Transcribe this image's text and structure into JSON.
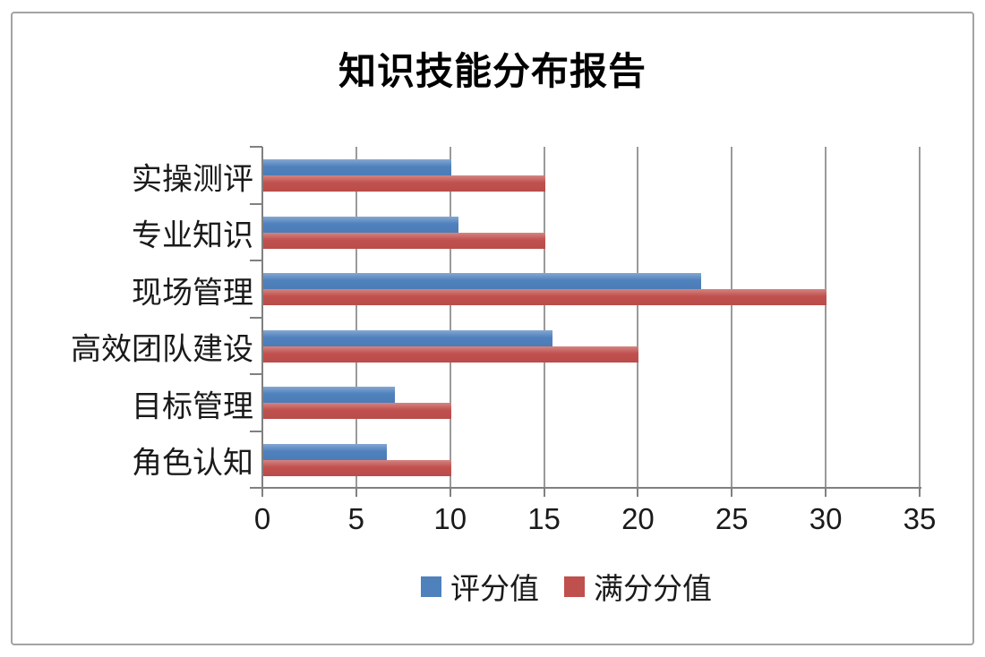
{
  "page": {
    "background_color": "#ffffff",
    "border_color": "#a3a3a3"
  },
  "chart_data": {
    "type": "bar",
    "orientation": "horizontal",
    "title": "知识技能分布报告",
    "categories": [
      "实操测评",
      "专业知识",
      "现场管理",
      "高效团队建设",
      "目标管理",
      "角色认知"
    ],
    "categories_order": "top-to-bottom",
    "series": [
      {
        "name": "评分值",
        "color": "#4F81BD",
        "values": [
          10,
          10.4,
          23.3,
          15.4,
          7,
          6.6
        ]
      },
      {
        "name": "满分分值",
        "color": "#C0504D",
        "values": [
          15,
          15,
          30,
          20,
          10,
          10
        ]
      }
    ],
    "xlim": [
      0,
      35
    ],
    "xticks": [
      0,
      5,
      10,
      15,
      20,
      25,
      30,
      35
    ],
    "grid": true,
    "legend_position": "bottom",
    "axis_color": "#808080",
    "grid_color": "#9a9a9a",
    "title_color": "#000000",
    "label_color": "#1a1a1a"
  }
}
